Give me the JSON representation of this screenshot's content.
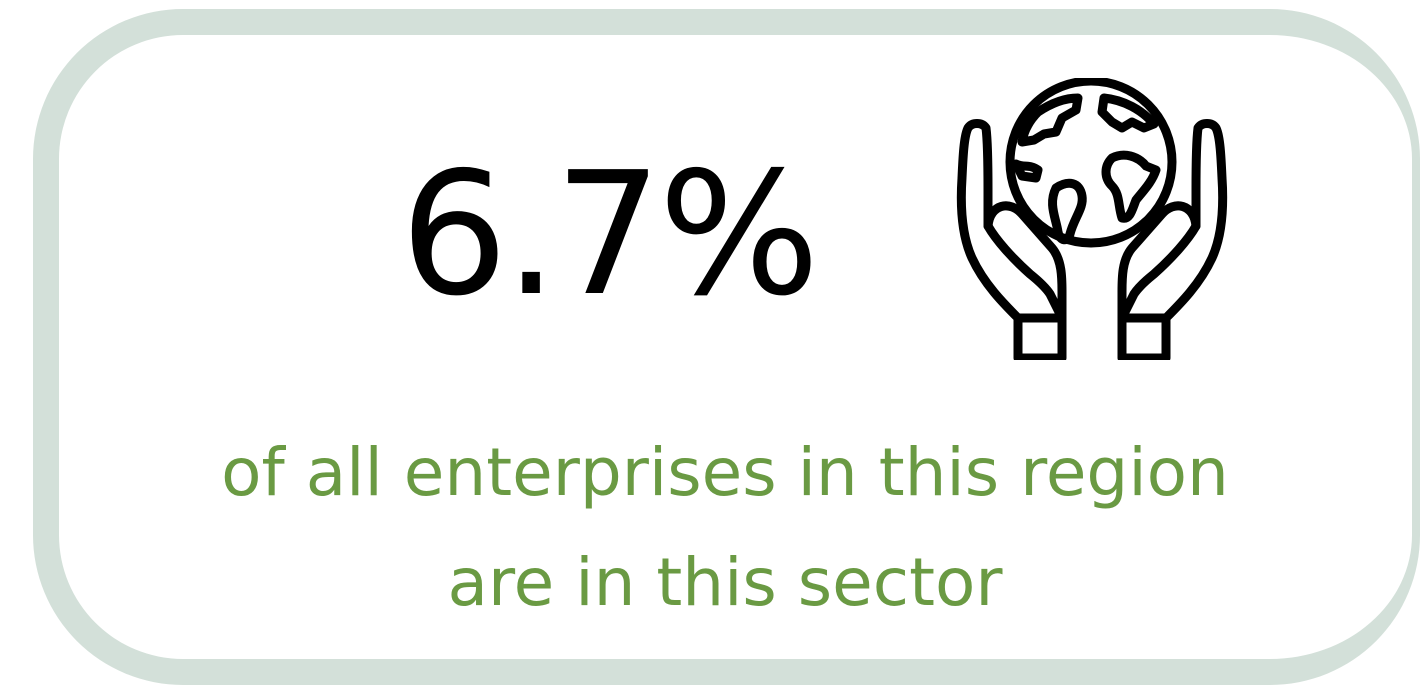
{
  "stat": {
    "value": "6.7%",
    "caption_line1": "of all enterprises in this region",
    "caption_line2": "are in this sector",
    "icon": "hands-holding-globe-icon"
  },
  "colors": {
    "card_border": "#d3e0d9",
    "value_text": "#000000",
    "caption_text": "#6a9a43"
  }
}
